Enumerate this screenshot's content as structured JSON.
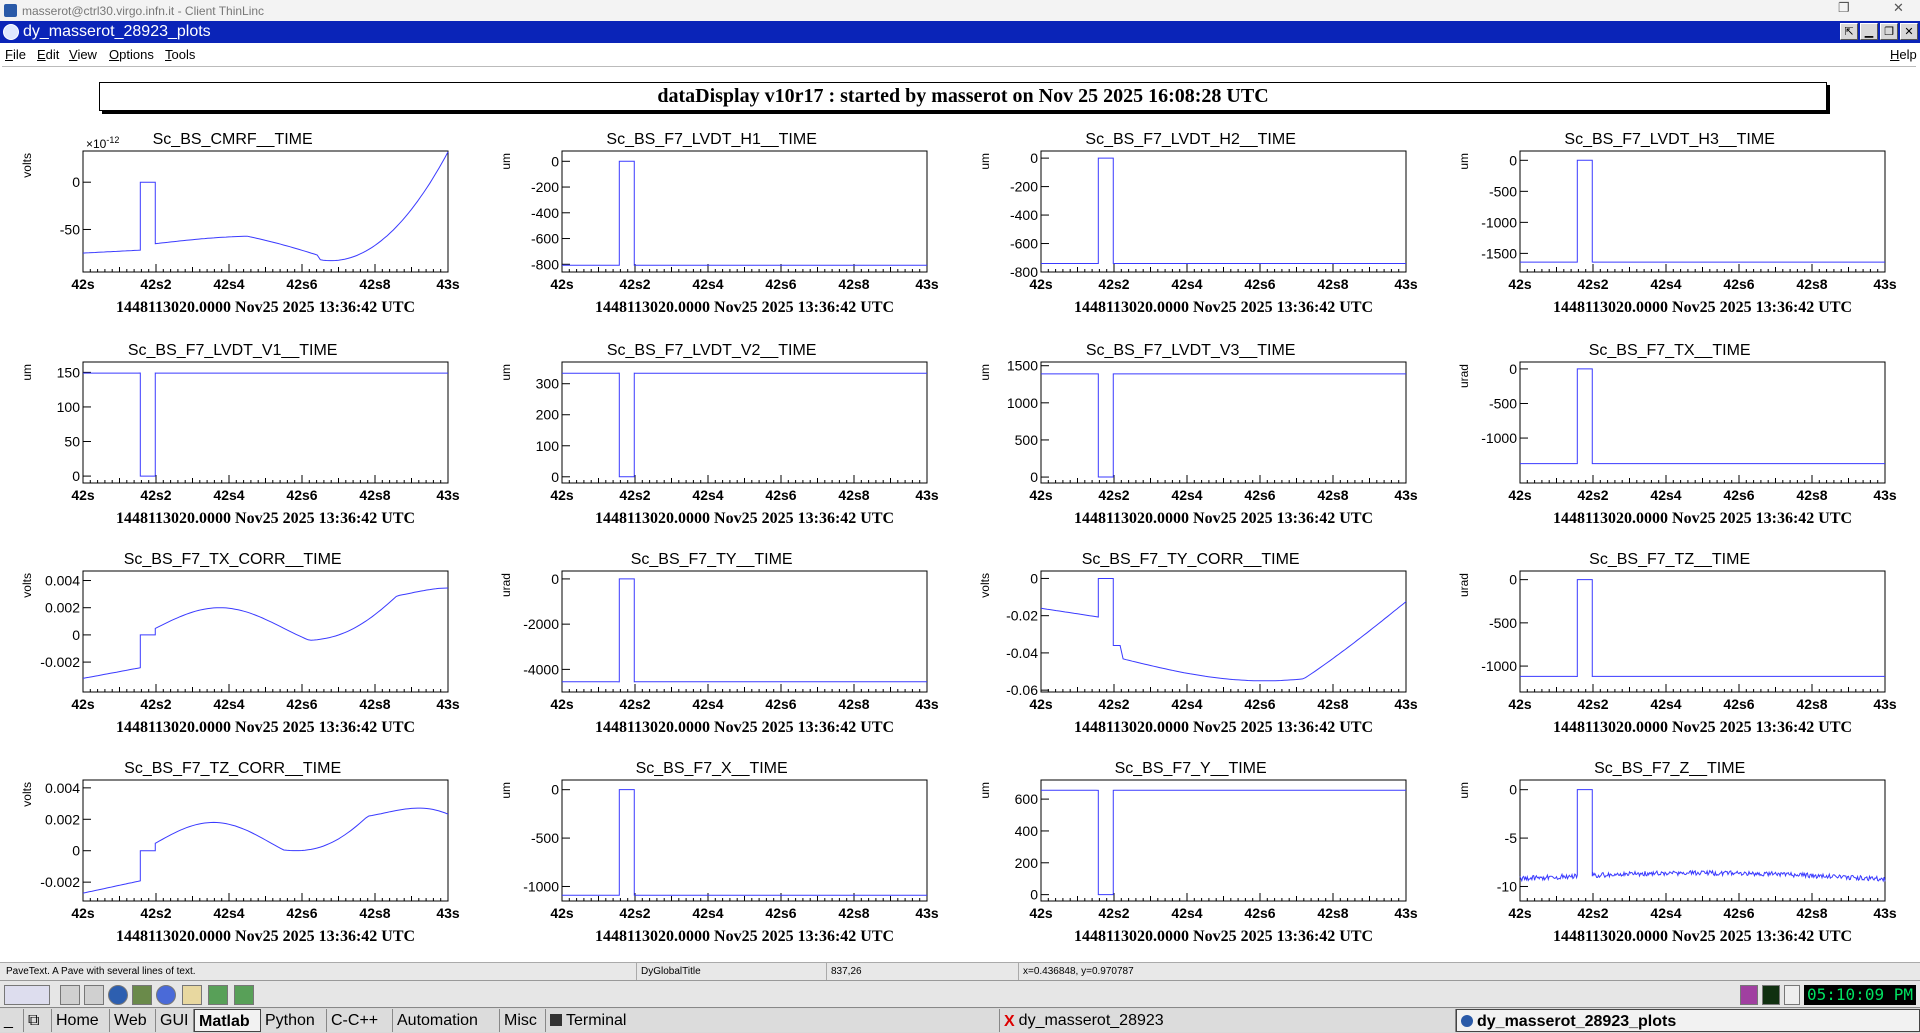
{
  "client": {
    "title": "masserot@ctrl30.virgo.infn.it - Client ThinLinc"
  },
  "window": {
    "title": "dy_masserot_28923_plots"
  },
  "menu": {
    "file": "File",
    "edit": "Edit",
    "view": "View",
    "options": "Options",
    "tools": "Tools",
    "help": "Help"
  },
  "banner": "dataDisplay v10r17 : started by masserot on Nov 25 2025 16:08:28 UTC",
  "time_label": "1448113020.0000 Nov25 2025 13:36:42 UTC",
  "x_ticks": [
    "42s",
    "42s2",
    "42s4",
    "42s6",
    "42s8",
    "43s"
  ],
  "plots": [
    {
      "title": "Sc_BS_CMRF__TIME",
      "unit": "volts",
      "exponent": "×10",
      "exponent_power": "-12",
      "ylim": [
        -95,
        33
      ],
      "yticks": [
        0,
        -50
      ],
      "ytick_labels": [
        "0",
        "-50"
      ],
      "base": -72,
      "pulse": 0,
      "shape": "cmrf"
    },
    {
      "title": "Sc_BS_F7_LVDT_H1__TIME",
      "unit": "um",
      "ylim": [
        -860,
        80
      ],
      "yticks": [
        0,
        -200,
        -400,
        -600,
        -800
      ],
      "ytick_labels": [
        "0",
        "-200",
        "-400",
        "-600",
        "-800"
      ],
      "base": -808,
      "pulse": 0
    },
    {
      "title": "Sc_BS_F7_LVDT_H2__TIME",
      "unit": "um",
      "ylim": [
        -800,
        50
      ],
      "yticks": [
        0,
        -200,
        -400,
        -600,
        -800
      ],
      "ytick_labels": [
        "0",
        "-200",
        "-400",
        "-600",
        "-800"
      ],
      "base": -740,
      "pulse": 0
    },
    {
      "title": "Sc_BS_F7_LVDT_H3__TIME",
      "unit": "um",
      "ylim": [
        -1800,
        150
      ],
      "yticks": [
        0,
        -500,
        -1000,
        -1500
      ],
      "ytick_labels": [
        "0",
        "-500",
        "-1000",
        "-1500"
      ],
      "base": -1640,
      "pulse": 0
    },
    {
      "title": "Sc_BS_F7_LVDT_V1__TIME",
      "unit": "um",
      "ylim": [
        -10,
        165
      ],
      "yticks": [
        150,
        100,
        50,
        0
      ],
      "ytick_labels": [
        "150",
        "100",
        "50",
        "0"
      ],
      "base": 149,
      "pulse": 0
    },
    {
      "title": "Sc_BS_F7_LVDT_V2__TIME",
      "unit": "um",
      "ylim": [
        -20,
        370
      ],
      "yticks": [
        300,
        200,
        100,
        0
      ],
      "ytick_labels": [
        "300",
        "200",
        "100",
        "0"
      ],
      "base": 334,
      "pulse": 0
    },
    {
      "title": "Sc_BS_F7_LVDT_V3__TIME",
      "unit": "um",
      "ylim": [
        -80,
        1550
      ],
      "yticks": [
        1500,
        1000,
        500,
        0
      ],
      "ytick_labels": [
        "1500",
        "1000",
        "500",
        "0"
      ],
      "base": 1390,
      "pulse": 0
    },
    {
      "title": "Sc_BS_F7_TX__TIME",
      "unit": "urad",
      "ylim": [
        -1650,
        100
      ],
      "yticks": [
        0,
        -500,
        -1000
      ],
      "ytick_labels": [
        "0",
        "-500",
        "-1000"
      ],
      "base": -1370,
      "pulse": 0
    },
    {
      "title": "Sc_BS_F7_TX_CORR__TIME",
      "unit": "volts",
      "ylim": [
        -0.0042,
        0.0047
      ],
      "yticks": [
        0.004,
        0.002,
        0,
        -0.002
      ],
      "ytick_labels": [
        "0.004",
        "0.002",
        "0",
        "-0.002"
      ],
      "base": -0.003,
      "pulse": 0,
      "shape": "txcorr"
    },
    {
      "title": "Sc_BS_F7_TY__TIME",
      "unit": "urad",
      "ylim": [
        -5000,
        350
      ],
      "yticks": [
        0,
        -2000,
        -4000
      ],
      "ytick_labels": [
        "0",
        "-2000",
        "-4000"
      ],
      "base": -4550,
      "pulse": 0
    },
    {
      "title": "Sc_BS_F7_TY_CORR__TIME",
      "unit": "volts",
      "ylim": [
        -0.061,
        0.004
      ],
      "yticks": [
        0,
        -0.02,
        -0.04,
        -0.06
      ],
      "ytick_labels": [
        "0",
        "-0.02",
        "-0.04",
        "-0.06"
      ],
      "base": -0.016,
      "pulse": 0,
      "shape": "tycorr"
    },
    {
      "title": "Sc_BS_F7_TZ__TIME",
      "unit": "urad",
      "ylim": [
        -1300,
        100
      ],
      "yticks": [
        0,
        -500,
        -1000
      ],
      "ytick_labels": [
        "0",
        "-500",
        "-1000"
      ],
      "base": -1120,
      "pulse": 0
    },
    {
      "title": "Sc_BS_F7_TZ_CORR__TIME",
      "unit": "volts",
      "ylim": [
        -0.0032,
        0.0045
      ],
      "yticks": [
        0.004,
        0.002,
        0,
        -0.002
      ],
      "ytick_labels": [
        "0.004",
        "0.002",
        "0",
        "-0.002"
      ],
      "base": -0.0028,
      "pulse": 0,
      "shape": "tzcorr"
    },
    {
      "title": "Sc_BS_F7_X__TIME",
      "unit": "um",
      "ylim": [
        -1150,
        100
      ],
      "yticks": [
        0,
        -500,
        -1000
      ],
      "ytick_labels": [
        "0",
        "-500",
        "-1000"
      ],
      "base": -1090,
      "pulse": 0
    },
    {
      "title": "Sc_BS_F7_Y__TIME",
      "unit": "um",
      "ylim": [
        -40,
        720
      ],
      "yticks": [
        600,
        400,
        200,
        0
      ],
      "ytick_labels": [
        "600",
        "400",
        "200",
        "0"
      ],
      "base": 655,
      "pulse": 0
    },
    {
      "title": "Sc_BS_F7_Z__TIME",
      "unit": "um",
      "ylim": [
        -11.5,
        1
      ],
      "yticks": [
        0,
        -5,
        -10
      ],
      "ytick_labels": [
        "0",
        "-5",
        "-10"
      ],
      "base": -9.5,
      "pulse": 0,
      "shape": "z"
    }
  ],
  "status": {
    "c1": "PaveText. A Pave with several lines of text.",
    "c2": "DyGlobalTitle",
    "c3": "837,26",
    "c4": "x=0.436848, y=0.970787"
  },
  "taskbar": {
    "home": "Home",
    "web": "Web",
    "gui": "GUI",
    "matlab": "Matlab",
    "python": "Python",
    "ccpp": "C-C++",
    "automation": "Automation",
    "misc": "Misc",
    "terminal": "Terminal",
    "dy": "dy_masserot_28923",
    "dyplots": "dy_masserot_28923_plots"
  },
  "clock": "05:10:09 PM"
}
